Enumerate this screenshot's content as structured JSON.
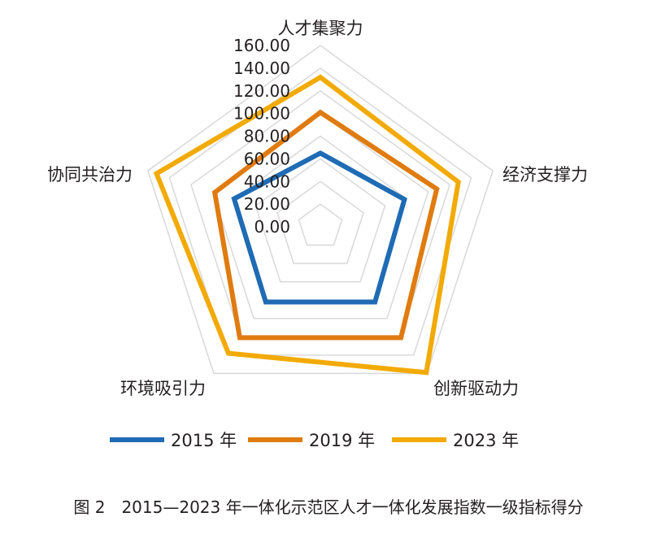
{
  "chart_data": {
    "type": "radar",
    "axes": [
      "人才集聚力",
      "经济支撑力",
      "创新驱动力",
      "环境吸引力",
      "协同共治力"
    ],
    "ticks": [
      "0.00",
      "20.00",
      "40.00",
      "60.00",
      "80.00",
      "100.00",
      "120.00",
      "140.00",
      "160.00"
    ],
    "rmin": 0,
    "rmax": 160,
    "series": [
      {
        "name": "2015 年",
        "color": "#1f6bb4",
        "values": [
          65,
          78,
          82,
          82,
          80
        ]
      },
      {
        "name": "2019 年",
        "color": "#e07b10",
        "values": [
          101,
          108,
          121,
          121,
          98
        ]
      },
      {
        "name": "2023 年",
        "color": "#f2aa06",
        "values": [
          132,
          128,
          159,
          138,
          152
        ]
      }
    ],
    "legend_position": "bottom",
    "grid": true,
    "grid_color": "#d9d9d9"
  },
  "caption": "图 2　2015—2023 年一体化示范区人才一体化发展指数一级指标得分"
}
